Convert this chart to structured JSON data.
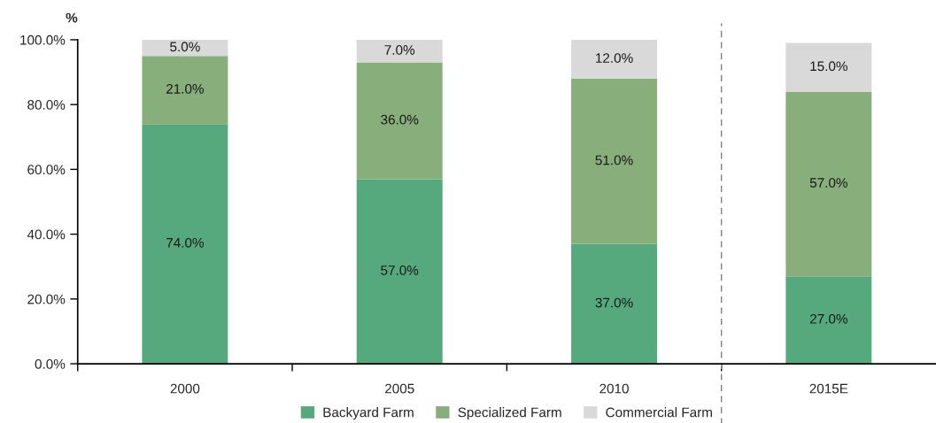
{
  "chart_data": {
    "type": "bar",
    "stacked": true,
    "ylabel": "%",
    "categories": [
      "2000",
      "2005",
      "2010",
      "2015E"
    ],
    "series": [
      {
        "name": "Backyard Farm",
        "color": "#55a97d",
        "values": [
          74,
          57,
          37,
          27
        ],
        "value_labels": [
          "74.0%",
          "57.0%",
          "37.0%",
          "27.0%"
        ]
      },
      {
        "name": "Specialized Farm",
        "color": "#88ae7b",
        "values": [
          21,
          36,
          51,
          57
        ],
        "value_labels": [
          "21.0%",
          "36.0%",
          "51.0%",
          "57.0%"
        ]
      },
      {
        "name": "Commercial Farm",
        "color": "#d9d9d9",
        "values": [
          5,
          7,
          12,
          15
        ],
        "value_labels": [
          "5.0%",
          "7.0%",
          "12.0%",
          "15.0%"
        ]
      }
    ],
    "ylim": [
      0,
      100
    ],
    "yticks": [
      {
        "value": 0,
        "label": "0.0%"
      },
      {
        "value": 20,
        "label": "20.0%"
      },
      {
        "value": 40,
        "label": "40.0%"
      },
      {
        "value": 60,
        "label": "60.0%"
      },
      {
        "value": 80,
        "label": "80.0%"
      },
      {
        "value": 100,
        "label": "100.0%"
      }
    ],
    "grid": false,
    "legend": "bottom"
  }
}
